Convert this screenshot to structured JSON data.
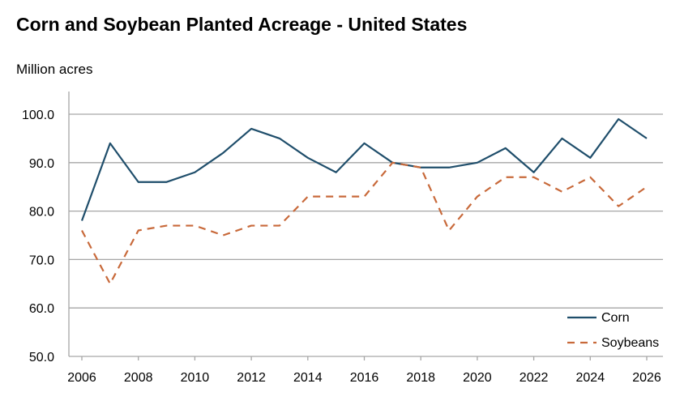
{
  "chart_data": {
    "type": "line",
    "title": "Corn and Soybean Planted Acreage - United States",
    "ylabel": "Million acres",
    "xlabel": "",
    "x": [
      2006,
      2007,
      2008,
      2009,
      2010,
      2011,
      2012,
      2013,
      2014,
      2015,
      2016,
      2017,
      2018,
      2019,
      2020,
      2021,
      2022,
      2023,
      2024,
      2025,
      2026
    ],
    "xticks": [
      "2006",
      "2008",
      "2010",
      "2012",
      "2014",
      "2016",
      "2018",
      "2020",
      "2022",
      "2024",
      "2026"
    ],
    "yticks": [
      "50.0",
      "60.0",
      "70.0",
      "80.0",
      "90.0",
      "100.0"
    ],
    "ylim": [
      50,
      100
    ],
    "xlim": [
      2006,
      2026
    ],
    "grid": "horizontal",
    "legend_position": "bottom-right",
    "series": [
      {
        "name": "Corn",
        "color": "#1f4e6b",
        "style": "solid",
        "values": [
          78,
          94,
          86,
          86,
          88,
          92,
          97,
          95,
          91,
          88,
          94,
          90,
          89,
          89,
          90,
          93,
          88,
          95,
          91,
          99,
          95
        ]
      },
      {
        "name": "Soybeans",
        "color": "#c8693a",
        "style": "dashed",
        "values": [
          76,
          65,
          76,
          77,
          77,
          75,
          77,
          77,
          83,
          83,
          83,
          90,
          89,
          76,
          83,
          87,
          87,
          84,
          87,
          81,
          85
        ]
      }
    ]
  }
}
